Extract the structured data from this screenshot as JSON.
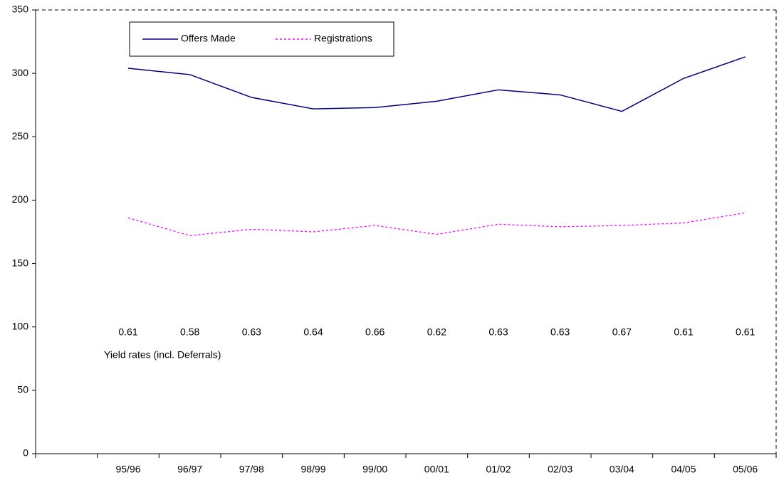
{
  "chart_data": {
    "type": "line",
    "categories": [
      null,
      "95/96",
      "96/97",
      "97/98",
      "98/99",
      "99/00",
      "00/01",
      "01/02",
      "02/03",
      "03/04",
      "04/05",
      "05/06"
    ],
    "series": [
      {
        "name": "Offers Made",
        "color": "#000080",
        "dash": "solid",
        "values": [
          null,
          304,
          299,
          281,
          272,
          273,
          278,
          287,
          283,
          270,
          296,
          313
        ]
      },
      {
        "name": "Registrations",
        "color": "#ff00ff",
        "dash": "dotted",
        "values": [
          null,
          186,
          172,
          177,
          175,
          180,
          173,
          181,
          179,
          180,
          182,
          190
        ]
      }
    ],
    "ylim": [
      0,
      350
    ],
    "yticks": [
      0,
      50,
      100,
      150,
      200,
      250,
      300,
      350
    ],
    "legend": "top-left",
    "annotation": {
      "text": "Yield rates (incl. Deferrals)",
      "values": [
        null,
        0.61,
        0.58,
        0.63,
        0.64,
        0.66,
        0.62,
        0.63,
        0.63,
        0.67,
        0.61,
        0.61
      ]
    }
  }
}
